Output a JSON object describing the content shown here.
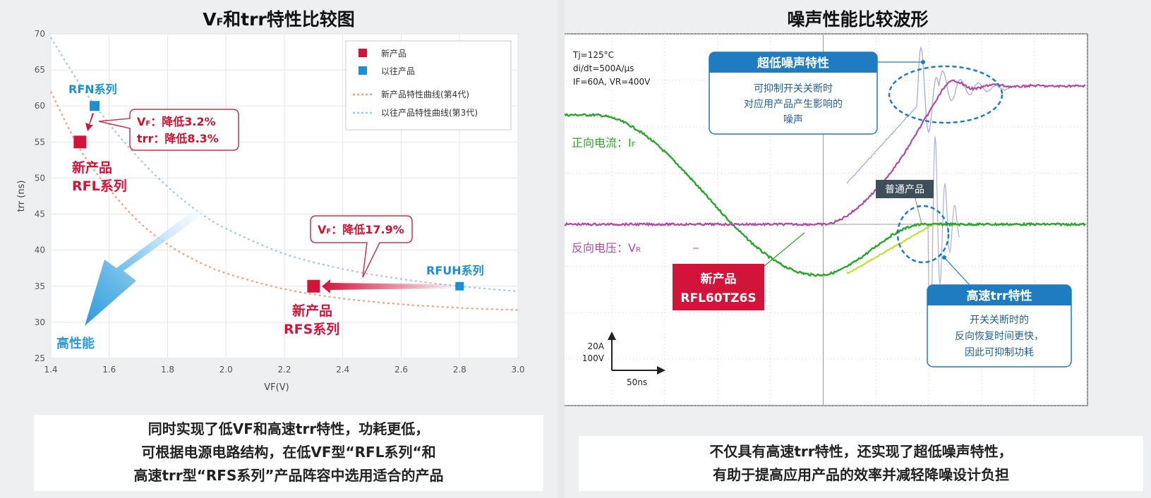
{
  "left": {
    "title_main": "V",
    "title_sub": "F",
    "title_rest": "和trr特性比较图",
    "caption_lines": [
      "同时实现了低VF和高速trr特性，功耗更低，",
      "可根据电源电路结构，在低VF型“RFL系列“和",
      "高速trr型“RFS系列”产品阵容中选用适合的产品"
    ]
  },
  "right": {
    "title": "噪声性能比较波形",
    "caption_lines": [
      "不仅具有高速trr特性，还实现了超低噪声特性，",
      "有助于提高应用产品的效率并减轻降噪设计负担"
    ]
  },
  "chart_data": [
    {
      "type": "scatter",
      "title": "VF和trr特性比较图",
      "xlabel": "VF(V)",
      "ylabel": "trr (ns)",
      "xlim": [
        1.4,
        3.0
      ],
      "ylim": [
        25,
        70
      ],
      "xticks": [
        "1.4",
        "1.6",
        "1.8",
        "2.0",
        "2.2",
        "2.4",
        "2.6",
        "2.8",
        "3.0"
      ],
      "yticks": [
        "25",
        "30",
        "35",
        "40",
        "45",
        "50",
        "55",
        "60",
        "65",
        "70"
      ],
      "grid": true,
      "legend_position": "top-right",
      "colors": {
        "new": "#d2143a",
        "old": "#1b8fd0",
        "new_curve": "#f0a07e",
        "old_curve": "#a8c4ea"
      },
      "series": [
        {
          "name": "新产品",
          "marker": "square",
          "color": "#d2143a",
          "points": [
            {
              "x": 1.5,
              "y": 55,
              "label_lines": [
                "新产品",
                "RFL系列"
              ]
            },
            {
              "x": 2.3,
              "y": 35,
              "label_lines": [
                "新产品",
                "RFS系列"
              ]
            }
          ]
        },
        {
          "name": "以往产品",
          "marker": "square",
          "color": "#1b8fd0",
          "points": [
            {
              "x": 1.55,
              "y": 60,
              "label": "RFN系列"
            },
            {
              "x": 2.8,
              "y": 35,
              "label": "RFUH系列"
            }
          ]
        },
        {
          "name": "新产品特性曲线(第4代)",
          "style": "dotted",
          "color": "#f0a07e",
          "points": [
            [
              1.4,
              62
            ],
            [
              1.5,
              54
            ],
            [
              1.6,
              48.5
            ],
            [
              1.7,
              44
            ],
            [
              1.8,
              40.8
            ],
            [
              1.9,
              38.5
            ],
            [
              2.0,
              36.8
            ],
            [
              2.2,
              34.6
            ],
            [
              2.4,
              33.3
            ],
            [
              2.6,
              32.5
            ],
            [
              2.8,
              32
            ],
            [
              3.0,
              31.7
            ]
          ]
        },
        {
          "name": "以往产品特性曲线(第3代)",
          "style": "dotted",
          "color": "#a8c4ea",
          "points": [
            [
              1.4,
              69.5
            ],
            [
              1.5,
              63
            ],
            [
              1.6,
              57.5
            ],
            [
              1.7,
              52.8
            ],
            [
              1.8,
              48.8
            ],
            [
              1.9,
              45.5
            ],
            [
              2.0,
              43
            ],
            [
              2.2,
              39.5
            ],
            [
              2.4,
              37.4
            ],
            [
              2.6,
              36
            ],
            [
              2.8,
              35
            ],
            [
              3.0,
              34.3
            ]
          ]
        }
      ],
      "annotations": [
        {
          "lines": [
            [
              "V",
              "F",
              "：降低3.2%"
            ],
            [
              "trr：降低8.3%"
            ]
          ]
        },
        {
          "lines": [
            [
              "V",
              "F",
              "：降低17.9%"
            ]
          ]
        },
        {
          "text": "高性能"
        }
      ]
    },
    {
      "type": "line",
      "title": "噪声性能比较波形",
      "conditions": [
        "Tj=125°C",
        "di/dt=500A/μs",
        "IF=60A, VR=400V"
      ],
      "scale": {
        "vertical_1": "20A",
        "vertical_2": "100V",
        "horizontal": "50ns"
      },
      "series": [
        {
          "name": "正向电流：IF",
          "color": "#2aa52a"
        },
        {
          "name": "反向电压：VR",
          "color": "#b04aa6"
        },
        {
          "name": "普通产品",
          "color": "#aab0de"
        }
      ],
      "labels": {
        "forward_current": "正向电流：I",
        "forward_current_sub": "F",
        "reverse_voltage": "反向电压：V",
        "reverse_voltage_sub": "R",
        "normal_product": "普通产品",
        "new_product_line1": "新产品",
        "new_product_line2": "RFL60TZ6S",
        "low_noise_title": "超低噪声特性",
        "low_noise_lines": [
          "可抑制开关关断时",
          "对应用产品产生影响的",
          "噪声"
        ],
        "fast_trr_title": "高速trr特性",
        "fast_trr_lines": [
          "开关关断时的",
          "反向恢复时间更快，",
          "因此可抑制功耗"
        ]
      }
    }
  ]
}
